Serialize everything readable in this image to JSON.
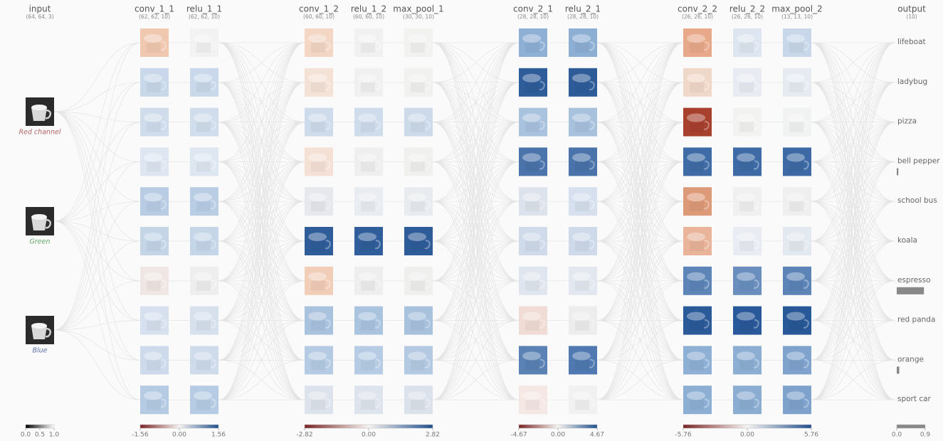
{
  "layers": [
    {
      "name": "input",
      "shape": "(64, 64, 3)"
    },
    {
      "name": "conv_1_1",
      "shape": "(62, 62, 10)",
      "maps": [
        "#f0c8b0",
        "#c8d8ea",
        "#cfdcec",
        "#dde6f1",
        "#b8cde4",
        "#c4d5e8",
        "#f0e6e4",
        "#d6e0ee",
        "#ccdaeb",
        "#b5cbe3"
      ]
    },
    {
      "name": "relu_1_1",
      "shape": "(62, 62, 10)",
      "maps": [
        "#f2f2f2",
        "#c9d9eb",
        "#d0ddec",
        "#dee7f1",
        "#b9cee5",
        "#c5d6e9",
        "#eeeeee",
        "#d7e1ee",
        "#cddbeb",
        "#b6cce4"
      ]
    },
    {
      "name": "conv_1_2",
      "shape": "(60, 60, 10)",
      "maps": [
        "#f3d6c4",
        "#f5e2d6",
        "#cddbeb",
        "#f5e0d6",
        "#e6e8ee",
        "#2f5d9a",
        "#f2cdb8",
        "#a9c2de",
        "#b5cbe3",
        "#dde3ec"
      ]
    },
    {
      "name": "relu_1_2",
      "shape": "(60, 60, 10)",
      "maps": [
        "#f1f1f1",
        "#f0f0f0",
        "#cedcec",
        "#efefef",
        "#e9ecf0",
        "#305e9b",
        "#eeeeee",
        "#aac3df",
        "#b6cce4",
        "#dee4ed"
      ]
    },
    {
      "name": "max_pool_1",
      "shape": "(30, 30, 10)",
      "maps": [
        "#f2f2f1",
        "#f1f1f0",
        "#ccdaea",
        "#f0f0ef",
        "#e8ebef",
        "#2e5c99",
        "#efefee",
        "#a8c1dd",
        "#b4cae2",
        "#dce2eb"
      ]
    },
    {
      "name": "conv_2_1",
      "shape": "(28, 28, 10)",
      "maps": [
        "#8fb0d5",
        "#2f5d9a",
        "#a9c2de",
        "#4a74ab",
        "#dde3ec",
        "#cfdbea",
        "#e0e6ef",
        "#f0dcd4",
        "#5a82b5",
        "#f5e8e4"
      ]
    },
    {
      "name": "relu_2_1",
      "shape": "(28, 28, 10)",
      "maps": [
        "#8eafd4",
        "#2e5c99",
        "#a8c1dd",
        "#4973aa",
        "#d6e0ee",
        "#cedaea",
        "#e3e8f0",
        "#ededed",
        "#4f79b0",
        "#f1f1f1"
      ]
    },
    {
      "name": "conv_2_2",
      "shape": "(26, 26, 10)",
      "maps": [
        "#e8a88a",
        "#f0d8c8",
        "#a8402e",
        "#3f6ca6",
        "#dd9a78",
        "#e9b49a",
        "#5d85b8",
        "#2a5a98",
        "#8fb0d5",
        "#8eafd4"
      ]
    },
    {
      "name": "relu_2_2",
      "shape": "(26, 26, 10)",
      "maps": [
        "#dde6f0",
        "#e8ecf2",
        "#f2f2f0",
        "#3e6ba5",
        "#f0f0f0",
        "#e9ecf2",
        "#6a8fbf",
        "#29599a",
        "#8daed3",
        "#8cadd2"
      ]
    },
    {
      "name": "max_pool_2",
      "shape": "(13, 13, 10)",
      "maps": [
        "#c8d8ea",
        "#e6ebf2",
        "#f1f2f2",
        "#3d6aa4",
        "#efefef",
        "#e3e9f0",
        "#5c84b7",
        "#285897",
        "#7fa3cd",
        "#7ea2cc"
      ]
    },
    {
      "name": "output",
      "shape": "(10)"
    }
  ],
  "input_channels": [
    {
      "label": "Red channel",
      "color": "#b36262"
    },
    {
      "label": "Green",
      "color": "#5fa95f"
    },
    {
      "label": "Blue",
      "color": "#5b73a8"
    }
  ],
  "output": {
    "classes": [
      "lifeboat",
      "ladybug",
      "pizza",
      "bell pepper",
      "school bus",
      "koala",
      "espresso",
      "red panda",
      "orange",
      "sport car"
    ],
    "probabilities": [
      0,
      0,
      0,
      0.05,
      0,
      0,
      0.86,
      0,
      0.08,
      0
    ],
    "bar_color": "#888888"
  },
  "legends": [
    {
      "colors": [
        "#000000",
        "#ffffff"
      ],
      "ticks": [
        {
          "value": 0,
          "label": "0.0"
        },
        0.5,
        {
          "value": 1,
          "label": "1.0"
        }
      ]
    },
    {
      "colors": [
        "#7a2323",
        "#f7f4f2",
        "#1f4f8d"
      ],
      "ticks": [
        -1.56,
        {
          "value": 0,
          "label": "0.00"
        },
        1.56
      ]
    },
    {
      "colors": [
        "#7a2323",
        "#f7f4f2",
        "#1f4f8d"
      ],
      "ticks": [
        -2.82,
        {
          "value": 0,
          "label": "0.00"
        },
        2.82
      ]
    },
    {
      "colors": [
        "#7a2323",
        "#f7f4f2",
        "#1f4f8d"
      ],
      "ticks": [
        -4.67,
        {
          "value": 0,
          "label": "0.00"
        },
        4.67
      ]
    },
    {
      "colors": [
        "#7a2323",
        "#f7f4f2",
        "#1f4f8d"
      ],
      "ticks": [
        -5.76,
        {
          "value": 0,
          "label": "0.00"
        },
        5.76
      ]
    },
    {
      "colors": [
        "#888888",
        "#888888"
      ],
      "ticks": [
        {
          "value": 0,
          "label": "0.0"
        },
        0.9
      ]
    }
  ]
}
